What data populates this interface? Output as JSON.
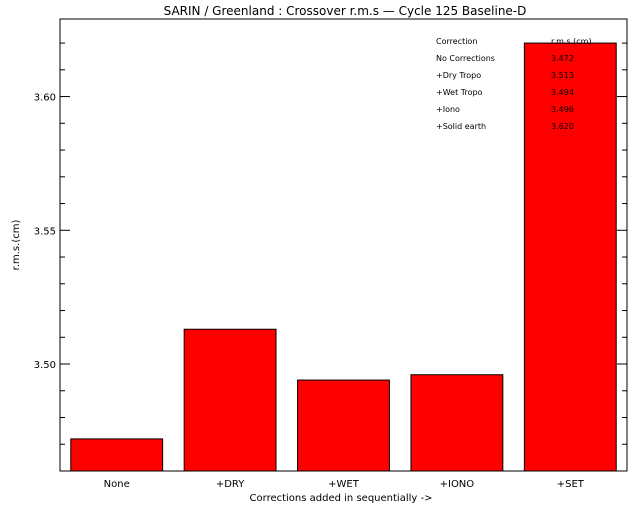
{
  "chart_data": {
    "type": "bar",
    "title": "SARIN / Greenland : Crossover r.m.s — Cycle 125 Baseline-D",
    "xlabel": "Corrections added in sequentially ->",
    "ylabel": "r.m.s.(cm)",
    "categories": [
      "None",
      "+DRY",
      "+WET",
      "+IONO",
      "+SET"
    ],
    "values": [
      3.472,
      3.513,
      3.494,
      3.496,
      3.62
    ],
    "ylim": [
      3.46,
      3.629
    ],
    "yticks": [
      3.5,
      3.55,
      3.6
    ],
    "ytick_labels": [
      "3.50",
      "3.55",
      "3.60"
    ],
    "minor_ytick_step": 0.01,
    "bar_color": "#ff0000",
    "grid": false,
    "legend": {
      "placement": "top-right",
      "header_name": "Correction",
      "header_value": "r.m.s.(cm)",
      "rows": [
        {
          "name": "No Corrections",
          "value": "3.472"
        },
        {
          "name": "+Dry Tropo",
          "value": "3.513"
        },
        {
          "name": "+Wet Tropo",
          "value": "3.494"
        },
        {
          "name": "+Iono",
          "value": "3.496"
        },
        {
          "name": "+Solid earth",
          "value": "3.620"
        }
      ]
    }
  }
}
